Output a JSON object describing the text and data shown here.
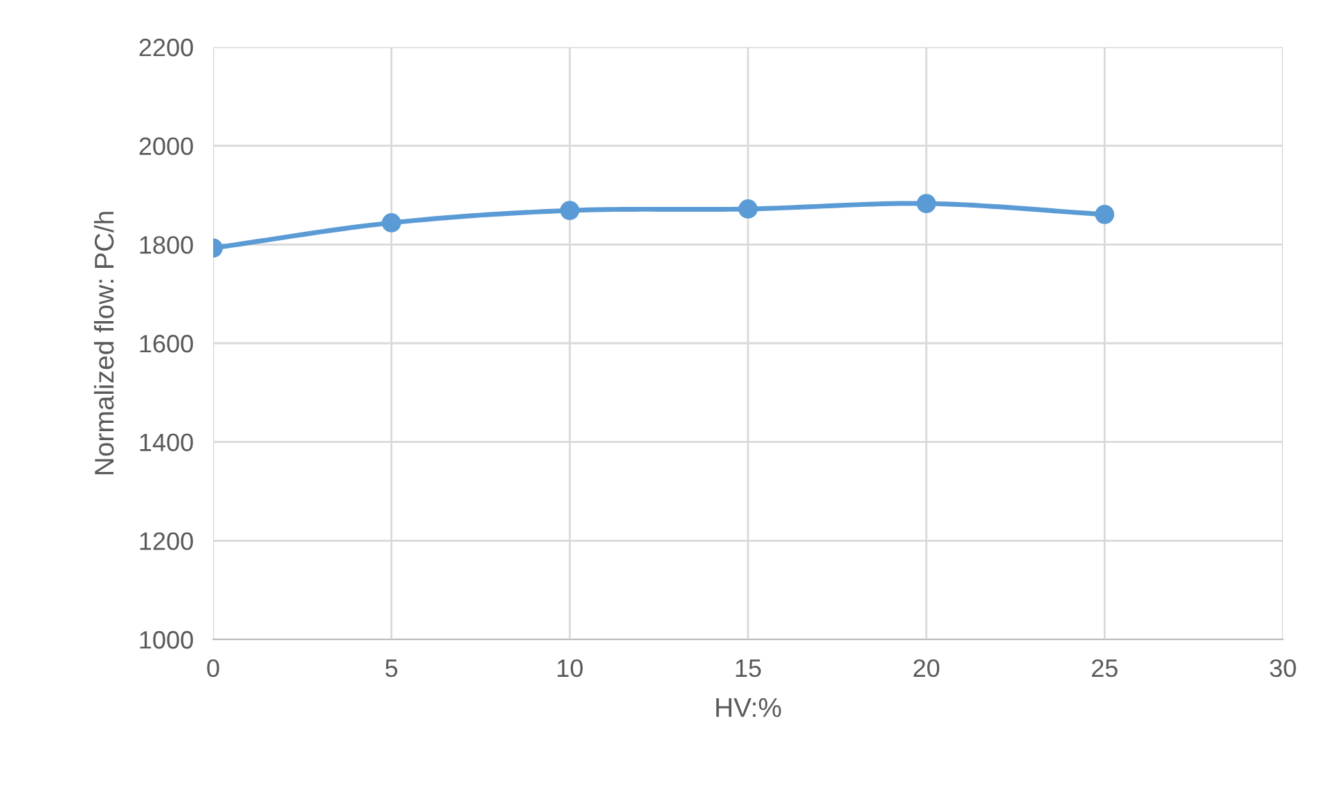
{
  "chart_data": {
    "type": "line",
    "xlabel": "HV:%",
    "ylabel": "Normalized flow: PC/h",
    "x": [
      0,
      5,
      10,
      15,
      20,
      25
    ],
    "series": [
      {
        "color": "#5b9bd5",
        "values": [
          1793,
          1844,
          1869,
          1872,
          1883,
          1861
        ]
      }
    ],
    "xlim": [
      0,
      30
    ],
    "xticks": [
      0,
      5,
      10,
      15,
      20,
      25,
      30
    ],
    "ylim": [
      1000,
      2200
    ],
    "yticks": [
      1000,
      1200,
      1400,
      1600,
      1800,
      2000,
      2200
    ],
    "grid": true,
    "marker": "circle",
    "line_style": "solid"
  }
}
